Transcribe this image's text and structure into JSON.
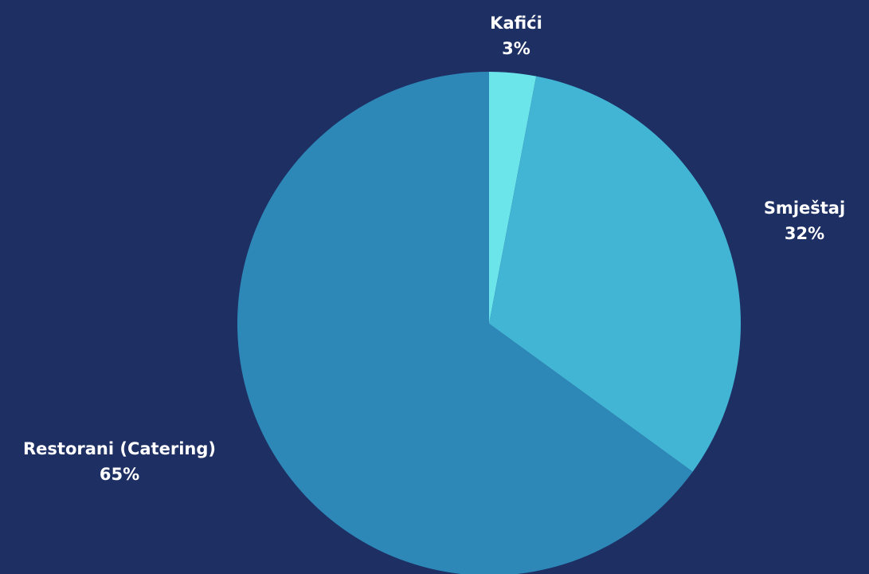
{
  "background": "#1d2f63",
  "chart_data": {
    "type": "pie",
    "start_angle_deg": 0,
    "direction": "clockwise",
    "slices": [
      {
        "label": "Kafići",
        "value": 3,
        "value_label": "3%",
        "color": "#6be4ea"
      },
      {
        "label": "Smještaj",
        "value": 32,
        "value_label": "32%",
        "color": "#42b5d5"
      },
      {
        "label": "Restorani (Catering)",
        "value": 65,
        "value_label": "65%",
        "color": "#2d88b8"
      }
    ]
  }
}
